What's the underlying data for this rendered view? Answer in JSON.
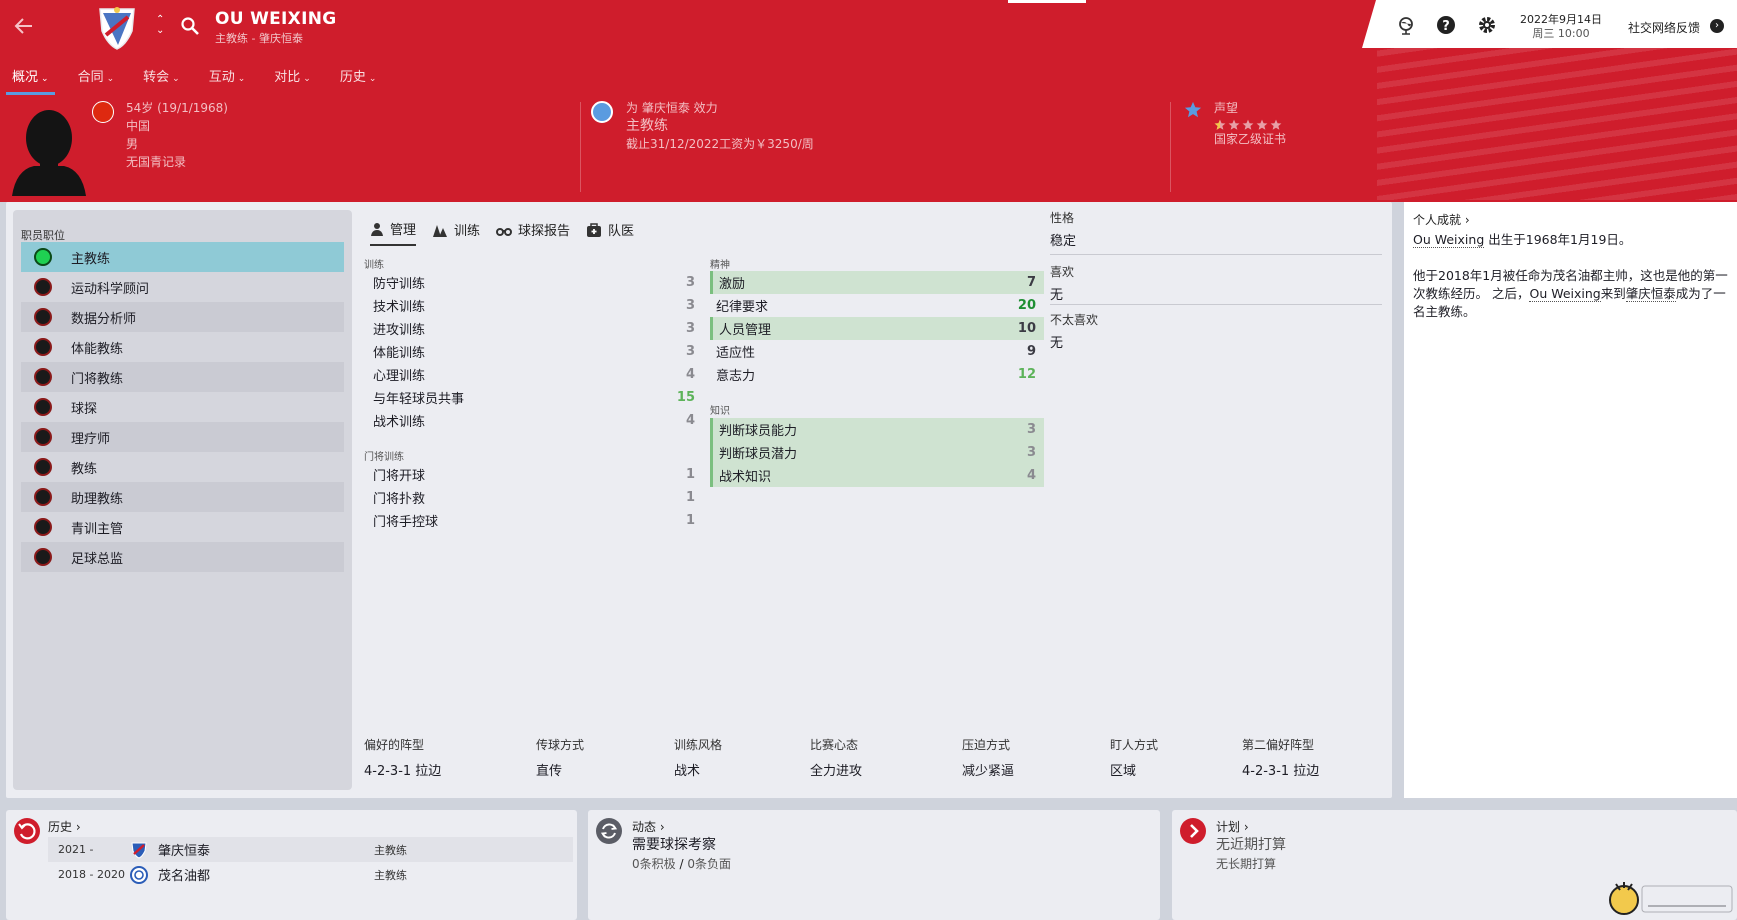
{
  "header": {
    "name": "OU WEIXING",
    "subtitle": "主教练 - 肇庆恒泰",
    "date": "2022年9月14日",
    "weekday_time": "周三 10:00",
    "feedback": "社交网络反馈"
  },
  "nav": [
    {
      "label": "概况"
    },
    {
      "label": "合同"
    },
    {
      "label": "转会"
    },
    {
      "label": "互动"
    },
    {
      "label": "对比"
    },
    {
      "label": "历史"
    }
  ],
  "profile": {
    "age": "54岁 (19/1/1968)",
    "nation": "中国",
    "gender": "男",
    "international": "无国青记录",
    "club_line": "为 肇庆恒泰 效力",
    "role": "主教练",
    "contract": "截止31/12/2022工资为￥3250/周",
    "reputation_label": "声望",
    "reputation_stars": 0.5,
    "licence": "国家乙级证书"
  },
  "staff_panel": {
    "title": "职员职位",
    "roles": [
      "主教练",
      "运动科学顾问",
      "数据分析师",
      "体能教练",
      "门将教练",
      "球探",
      "理疗师",
      "教练",
      "助理教练",
      "青训主管",
      "足球总监"
    ]
  },
  "tabs": [
    {
      "label": "管理",
      "icon": "person-icon"
    },
    {
      "label": "训练",
      "icon": "cones-icon"
    },
    {
      "label": "球探报告",
      "icon": "binoculars-icon"
    },
    {
      "label": "队医",
      "icon": "medkit-icon"
    }
  ],
  "training": {
    "label": "训练",
    "items": [
      {
        "name": "防守训练",
        "value": "3"
      },
      {
        "name": "技术训练",
        "value": "3"
      },
      {
        "name": "进攻训练",
        "value": "3"
      },
      {
        "name": "体能训练",
        "value": "3"
      },
      {
        "name": "心理训练",
        "value": "4"
      },
      {
        "name": "与年轻球员共事",
        "value": "15"
      },
      {
        "name": "战术训练",
        "value": "4"
      }
    ]
  },
  "gk_training": {
    "label": "门将训练",
    "items": [
      {
        "name": "门将开球",
        "value": "1"
      },
      {
        "name": "门将扑救",
        "value": "1"
      },
      {
        "name": "门将手控球",
        "value": "1"
      }
    ]
  },
  "mental": {
    "label": "精神",
    "items": [
      {
        "name": "激励",
        "value": "7"
      },
      {
        "name": "纪律要求",
        "value": "20"
      },
      {
        "name": "人员管理",
        "value": "10"
      },
      {
        "name": "适应性",
        "value": "9"
      },
      {
        "name": "意志力",
        "value": "12"
      }
    ]
  },
  "knowledge": {
    "label": "知识",
    "items": [
      {
        "name": "判断球员能力",
        "value": "3"
      },
      {
        "name": "判断球员潜力",
        "value": "3"
      },
      {
        "name": "战术知识",
        "value": "4"
      }
    ]
  },
  "personality": {
    "label": "性格",
    "value": "稳定",
    "likes_label": "喜欢",
    "likes": "无",
    "dislikes_label": "不太喜欢",
    "dislikes": "无"
  },
  "tactics": [
    {
      "label": "偏好的阵型",
      "value": "4-2-3-1 拉边"
    },
    {
      "label": "传球方式",
      "value": "直传"
    },
    {
      "label": "训练风格",
      "value": "战术"
    },
    {
      "label": "比赛心态",
      "value": "全力进攻"
    },
    {
      "label": "压迫方式",
      "value": "减少紧逼"
    },
    {
      "label": "盯人方式",
      "value": "区域"
    },
    {
      "label": "第二偏好阵型",
      "value": "4-2-3-1 拉边"
    }
  ],
  "bio": {
    "title": "个人成就",
    "name": "Ou Weixing",
    "p1_rest": " 出生于1968年1月19日。",
    "p2_a": "他于2018年1月被任命为茂名油都主帅，这也是他的第一次教练经历。 之后，",
    "p2_b": "来到",
    "p2_club": "肇庆恒泰",
    "p2_c": "成为了一名主教练。"
  },
  "history": {
    "title": "历史",
    "rows": [
      {
        "years": "2021 -",
        "club": "肇庆恒泰",
        "role": "主教练"
      },
      {
        "years": "2018 - 2020",
        "club": "茂名油都",
        "role": "主教练"
      }
    ]
  },
  "dynamics": {
    "title": "动态",
    "headline": "需要球探考察",
    "positive": "0条积极",
    "slash": "/",
    "negative": "0条负面"
  },
  "plans": {
    "title": "计划",
    "short": "无近期打算",
    "long": "无长期打算"
  },
  "colors": {
    "header_red": "#cf1d2c",
    "accent_blue": "#5a9be0",
    "selected_role": "#8fcad6",
    "highlight_green": "#cfe3d1"
  }
}
